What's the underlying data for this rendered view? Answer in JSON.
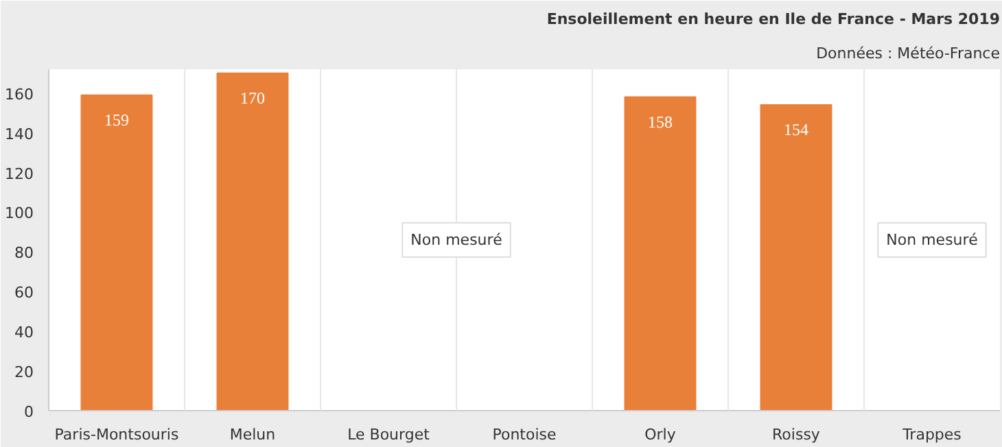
{
  "chart_data": {
    "type": "bar",
    "title": "Ensoleillement en heure en Ile de France - Mars 2019",
    "subtitle": "Données : Météo-France",
    "categories": [
      "Paris-Montsouris",
      "Melun",
      "Le Bourget",
      "Pontoise",
      "Orly",
      "Roissy",
      "Trappes"
    ],
    "values": [
      159,
      170,
      null,
      null,
      158,
      154,
      null
    ],
    "color": "#e8803a",
    "ylim": [
      0,
      172
    ],
    "yticks": [
      0,
      20,
      40,
      60,
      80,
      100,
      120,
      140,
      160
    ],
    "grid": "x",
    "data_labels": true,
    "annotations": [
      "Non mesuré",
      "Non mesuré"
    ]
  }
}
